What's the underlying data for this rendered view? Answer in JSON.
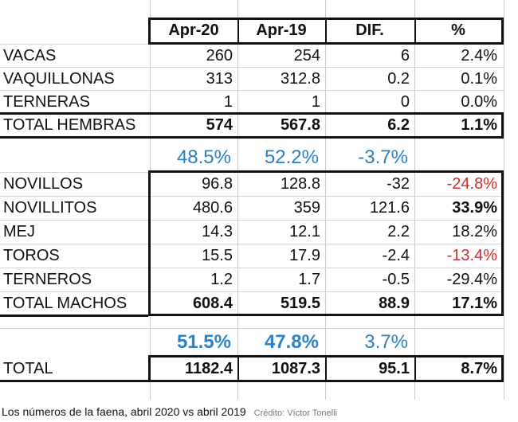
{
  "table": {
    "headers": [
      "Apr-20",
      "Apr-19",
      "DIF.",
      "%"
    ],
    "hembras": [
      {
        "label": "VACAS",
        "apr20": "260",
        "apr19": "254",
        "dif": "6",
        "pct": "2.4%"
      },
      {
        "label": "VAQUILLONAS",
        "apr20": "313",
        "apr19": "312.8",
        "dif": "0.2",
        "pct": "0.1%"
      },
      {
        "label": "TERNERAS",
        "apr20": "1",
        "apr19": "1",
        "dif": "0",
        "pct": "0.0%"
      }
    ],
    "total_hembras": {
      "label": "TOTAL HEMBRAS",
      "apr20": "574",
      "apr19": "567.8",
      "dif": "6.2",
      "pct": "1.1%"
    },
    "share_hembras": {
      "apr20": "48.5%",
      "apr19": "52.2%",
      "dif": "-3.7%"
    },
    "machos": [
      {
        "label": "NOVILLOS",
        "apr20": "96.8",
        "apr19": "128.8",
        "dif": "-32",
        "pct": "-24.8%"
      },
      {
        "label": "NOVILLITOS",
        "apr20": "480.6",
        "apr19": "359",
        "dif": "121.6",
        "pct": "33.9%"
      },
      {
        "label": "MEJ",
        "apr20": "14.3",
        "apr19": "12.1",
        "dif": "2.2",
        "pct": "18.2%"
      },
      {
        "label": "TOROS",
        "apr20": "15.5",
        "apr19": "17.9",
        "dif": "-2.4",
        "pct": "-13.4%"
      },
      {
        "label": "TERNEROS",
        "apr20": "1.2",
        "apr19": "1.7",
        "dif": "-0.5",
        "pct": "-29.4%"
      }
    ],
    "total_machos": {
      "label": "TOTAL MACHOS",
      "apr20": "608.4",
      "apr19": "519.5",
      "dif": "88.9",
      "pct": "17.1%"
    },
    "share_machos": {
      "apr20": "51.5%",
      "apr19": "47.8%",
      "dif": "3.7%"
    },
    "total": {
      "label": "TOTAL",
      "apr20": "1182.4",
      "apr19": "1087.3",
      "dif": "95.1",
      "pct": "8.7%"
    }
  },
  "caption": {
    "text": "Los números de la faena, abril 2020 vs abril 2019",
    "credit": "Crédito: Víctor Tonelli"
  },
  "colors": {
    "negative": "#d22b2b",
    "share": "#2a7fc1",
    "border": "#111111"
  }
}
